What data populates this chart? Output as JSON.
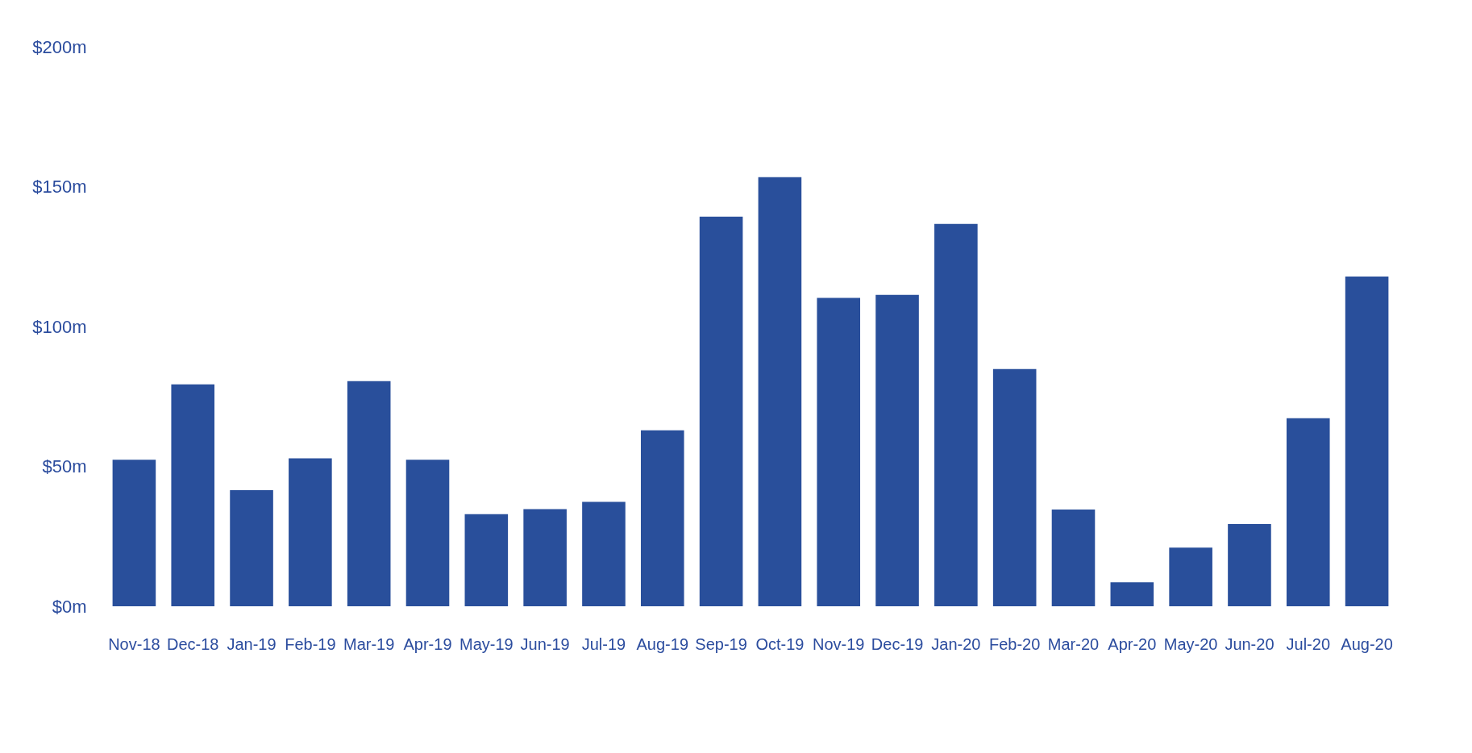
{
  "chart_data": {
    "type": "bar",
    "categories": [
      "Nov-18",
      "Dec-18",
      "Jan-19",
      "Feb-19",
      "Mar-19",
      "Apr-19",
      "May-19",
      "Jun-19",
      "Jul-19",
      "Aug-19",
      "Sep-19",
      "Oct-19",
      "Nov-19",
      "Dec-19",
      "Jan-20",
      "Feb-20",
      "Mar-20",
      "Apr-20",
      "May-20",
      "Jun-20",
      "Jul-20",
      "Aug-20"
    ],
    "values": [
      52.4,
      79.3,
      41.5,
      52.9,
      80.5,
      52.4,
      32.9,
      34.7,
      37.3,
      62.9,
      139.3,
      153.4,
      110.2,
      111.3,
      136.7,
      84.8,
      34.6,
      8.6,
      21.0,
      29.4,
      67.2,
      117.9
    ],
    "color": "#294f9b",
    "ylim": [
      0,
      200
    ],
    "yticks": [
      {
        "value": 0,
        "label": "$0m"
      },
      {
        "value": 50,
        "label": "$50m"
      },
      {
        "value": 100,
        "label": "$100m"
      },
      {
        "value": 150,
        "label": "$150m"
      },
      {
        "value": 200,
        "label": "$200m"
      }
    ]
  }
}
